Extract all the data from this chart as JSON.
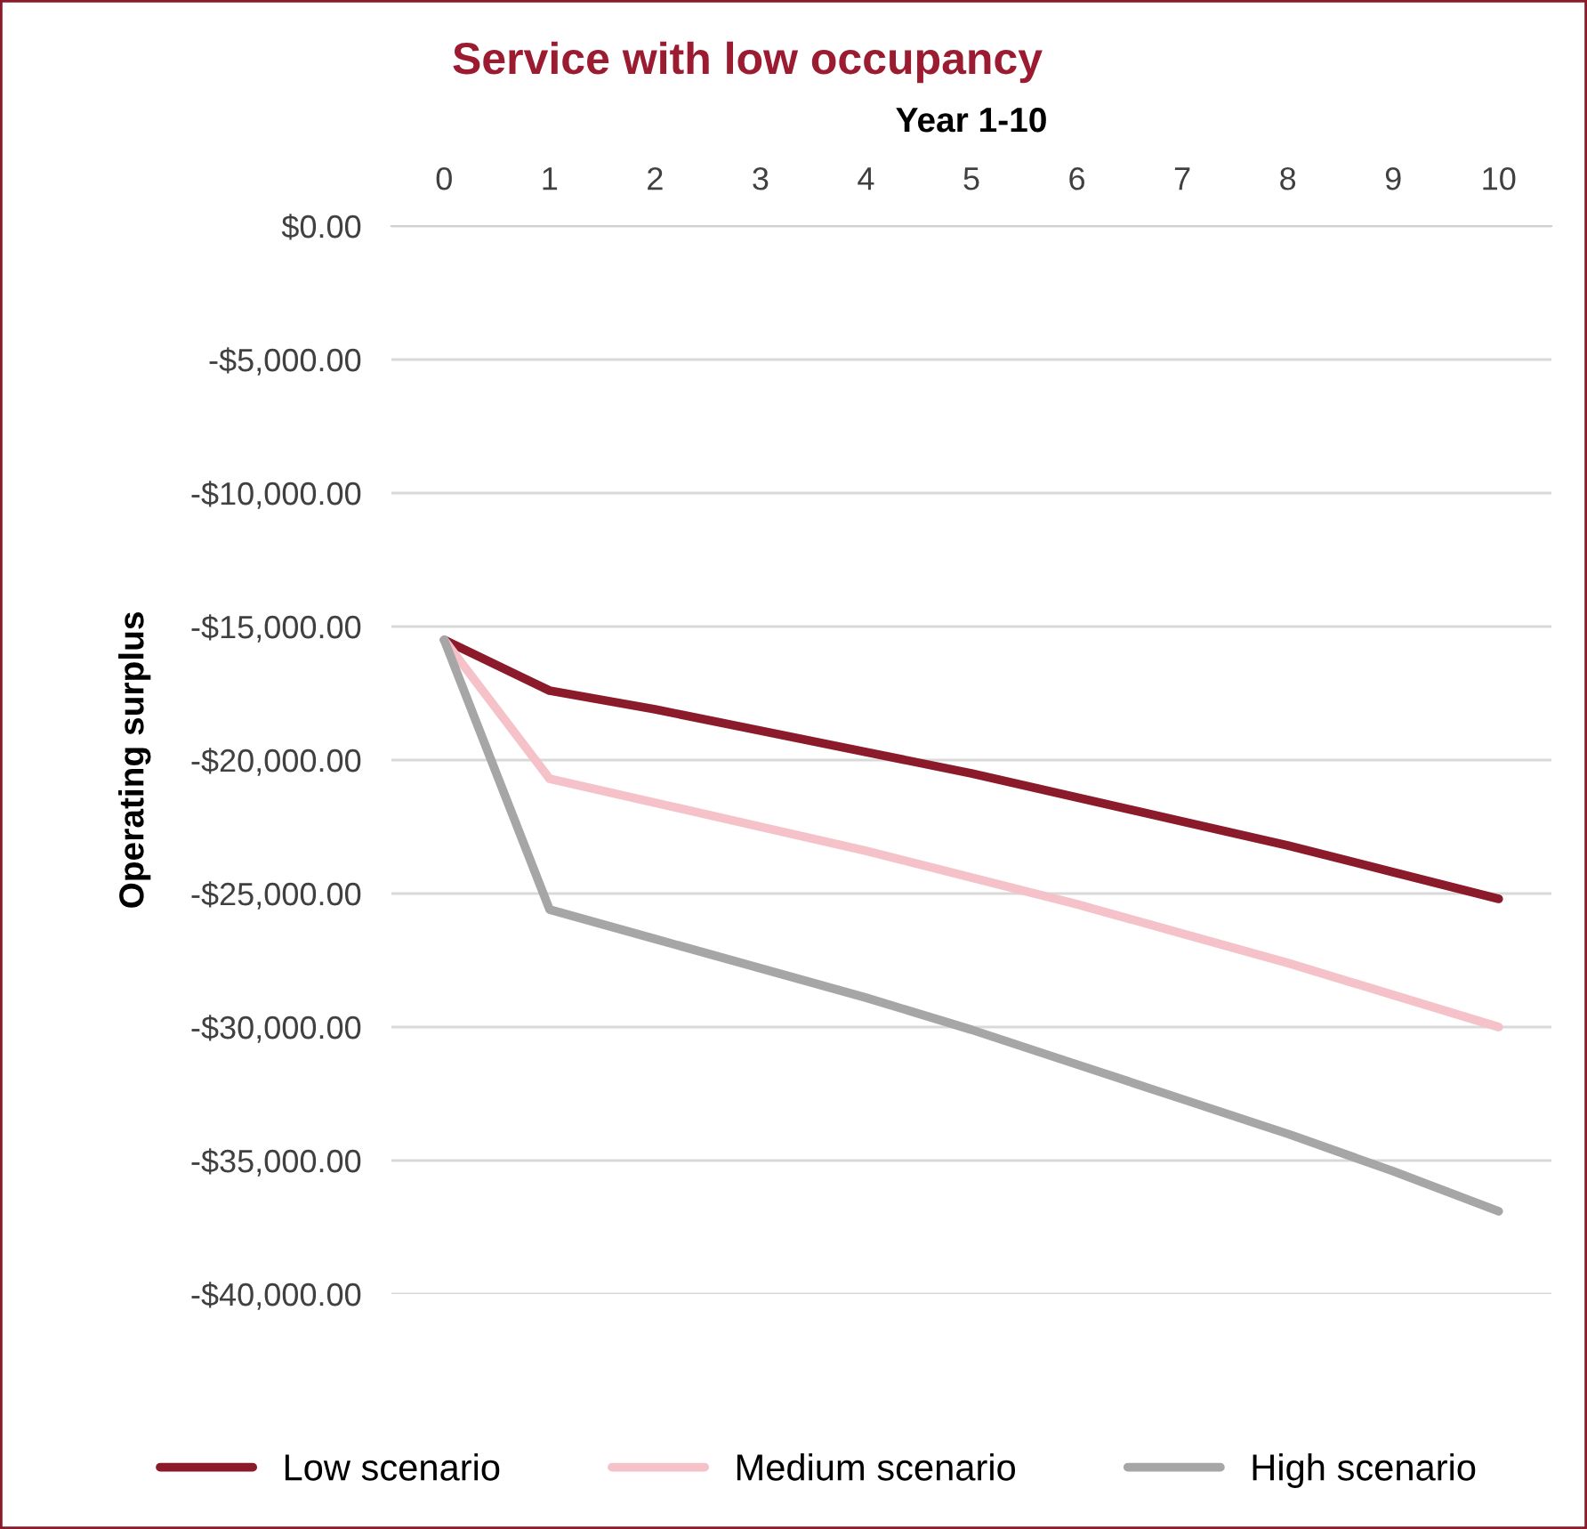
{
  "chart_data": {
    "type": "line",
    "title": "Service with low occupancy",
    "xlabel": "Year 1-10",
    "ylabel": "Operating surplus",
    "categories": [
      "0",
      "1",
      "2",
      "3",
      "4",
      "5",
      "6",
      "7",
      "8",
      "9",
      "10"
    ],
    "series": [
      {
        "name": "Low scenario",
        "color": "#8b1a2b",
        "values": [
          -15500,
          -17400,
          -18100,
          -18900,
          -19700,
          -20500,
          -21400,
          -22300,
          -23200,
          -24200,
          -25200
        ]
      },
      {
        "name": "Medium scenario",
        "color": "#f4c2c8",
        "values": [
          -15500,
          -20700,
          -21600,
          -22500,
          -23400,
          -24400,
          -25400,
          -26500,
          -27600,
          -28800,
          -30000
        ]
      },
      {
        "name": "High scenario",
        "color": "#a6a6a6",
        "values": [
          -15500,
          -25600,
          -26700,
          -27800,
          -28900,
          -30100,
          -31400,
          -32700,
          -34000,
          -35400,
          -36900
        ]
      }
    ],
    "ylim": [
      -40000,
      0
    ],
    "yticks": [
      {
        "value": 0,
        "label": "$0.00"
      },
      {
        "value": -5000,
        "label": "-$5,000.00"
      },
      {
        "value": -10000,
        "label": "-$10,000.00"
      },
      {
        "value": -15000,
        "label": "-$15,000.00"
      },
      {
        "value": -20000,
        "label": "-$20,000.00"
      },
      {
        "value": -25000,
        "label": "-$25,000.00"
      },
      {
        "value": -30000,
        "label": "-$30,000.00"
      },
      {
        "value": -35000,
        "label": "-$35,000.00"
      },
      {
        "value": -40000,
        "label": "-$40,000.00"
      }
    ],
    "grid": "y",
    "legend": "bottom",
    "marker": "none",
    "line_style": "solid"
  }
}
